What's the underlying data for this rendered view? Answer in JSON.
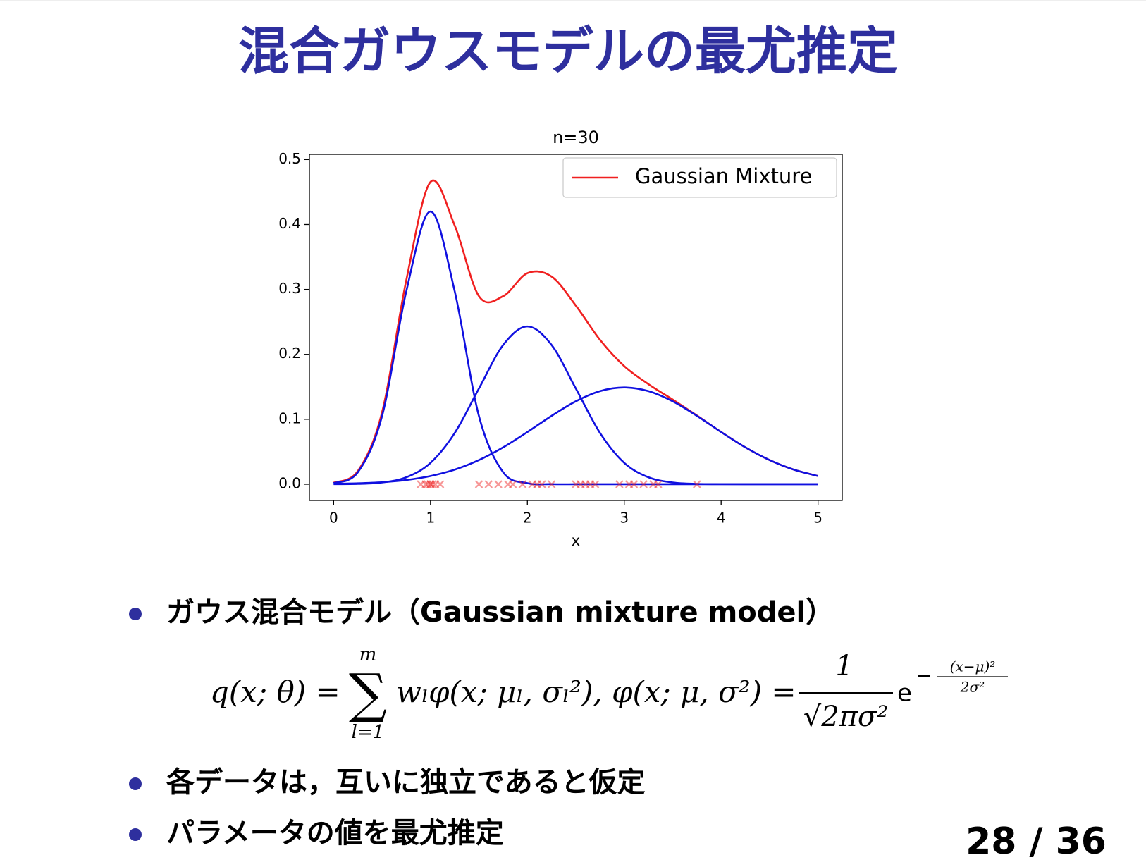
{
  "slide": {
    "title": "混合ガウスモデルの最尤推定",
    "page": "28 / 36",
    "bullets": [
      "ガウス混合モデル（Gaussian mixture model）",
      "各データは，互いに独立であると仮定",
      "パラメータの値を最尤推定"
    ],
    "formula": {
      "lhs": "q(x; θ) =",
      "sum": "∑",
      "sum_top": "m",
      "sum_bottom": "l=1",
      "rest": "wₗφ(x; μₗ, σₗ²),  φ(x; μ, σ²) =",
      "frac_num": "1",
      "frac_den": "√2πσ²",
      "exp_base": "e",
      "exp_sign": "−",
      "exp_num": "(x−μ)²",
      "exp_den": "2σ²"
    }
  },
  "chart_data": {
    "type": "line",
    "title": "n=30",
    "x_label": "x",
    "x": [
      0,
      0.25,
      0.5,
      0.75,
      1,
      1.25,
      1.5,
      1.75,
      2,
      2.25,
      2.5,
      2.75,
      3,
      3.25,
      3.5,
      3.75,
      4,
      4.25,
      4.5,
      4.75,
      5
    ],
    "series": [
      {
        "name": "Gaussian Mixture",
        "color": "#f02020",
        "values": [
          0.0023,
          0.0203,
          0.1108,
          0.3142,
          0.4655,
          0.3984,
          0.2896,
          0.2896,
          0.325,
          0.3198,
          0.2751,
          0.2223,
          0.1819,
          0.1541,
          0.1304,
          0.1058,
          0.0805,
          0.0568,
          0.0372,
          0.0225,
          0.0126
        ]
      },
      {
        "color": "#1010e0",
        "values": [
          0.0016,
          0.0184,
          0.105,
          0.297,
          0.42,
          0.297,
          0.105,
          0.0184,
          0.0016,
          0.0001,
          0,
          0,
          0,
          0,
          0,
          0,
          0,
          0,
          0,
          0,
          0
        ]
      },
      {
        "color": "#1010e0",
        "values": [
          0.0001,
          0.0005,
          0.0027,
          0.0107,
          0.0329,
          0.0789,
          0.1474,
          0.2144,
          0.243,
          0.2144,
          0.1474,
          0.0789,
          0.0329,
          0.0107,
          0.0027,
          0.0005,
          0.0001,
          0,
          0,
          0,
          0
        ]
      },
      {
        "color": "#1010e0",
        "values": [
          0.0006,
          0.0014,
          0.0031,
          0.0065,
          0.0126,
          0.0225,
          0.0372,
          0.0568,
          0.0804,
          0.1053,
          0.1277,
          0.1434,
          0.149,
          0.1434,
          0.1277,
          0.1053,
          0.0804,
          0.0568,
          0.0372,
          0.0225,
          0.0126
        ]
      }
    ],
    "points": {
      "color": "#f03030",
      "marker": "x",
      "x": [
        0.9,
        0.95,
        0.97,
        1.0,
        1.0,
        1.02,
        1.05,
        1.1,
        1.5,
        1.6,
        1.7,
        1.8,
        1.85,
        1.95,
        2.05,
        2.1,
        2.15,
        2.25,
        2.5,
        2.55,
        2.6,
        2.65,
        2.7,
        2.95,
        3.05,
        3.1,
        3.2,
        3.3,
        3.35,
        3.75
      ],
      "y": [
        0,
        0,
        0,
        0,
        0,
        0,
        0,
        0,
        0,
        0,
        0,
        0,
        0,
        0,
        0,
        0,
        0,
        0,
        0,
        0,
        0,
        0,
        0,
        0,
        0,
        0,
        0,
        0,
        0,
        0
      ]
    },
    "xlim": [
      -0.25,
      5.25
    ],
    "ylim": [
      -0.025,
      0.508
    ],
    "xticks": [
      0,
      1,
      2,
      3,
      4,
      5
    ],
    "yticks": [
      {
        "value": 0,
        "label": "0.0"
      },
      0.1,
      0.2,
      0.3,
      0.4,
      0.5
    ],
    "legend": "upper right"
  }
}
